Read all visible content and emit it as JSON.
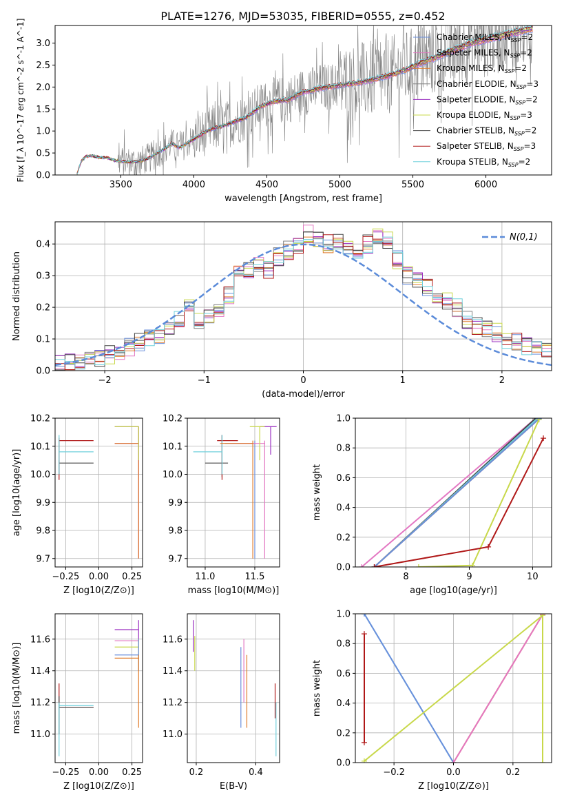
{
  "figure_title": "PLATE=1276, MJD=53035, FIBERID=0555, z=0.452",
  "colors": {
    "Chabrier MILES": "#6a8fdc",
    "Salpeter MILES": "#e377c2",
    "Kroupa MILES": "#e07b2a",
    "Chabrier ELODIE": "#7f7f7f",
    "Salpeter ELODIE": "#9a2fc0",
    "Kroupa ELODIE": "#c8d84a",
    "Chabrier STELIB": "#444444",
    "Salpeter STELIB": "#b01818",
    "Kroupa STELIB": "#6fd0dc",
    "gaussian": "#5b8bd9",
    "grid": "#b0b0b0"
  },
  "chart_data": [
    {
      "id": "spectrum",
      "type": "line",
      "xlabel": "wavelength [Angstrom, rest frame]",
      "ylabel": "Flux [f_λ 10^-17 erg cm^-2 s^-1 A^-1]",
      "xlim": [
        3050,
        6450
      ],
      "ylim": [
        0,
        3.4
      ],
      "xticks": [
        3500,
        4000,
        4500,
        5000,
        5500,
        6000
      ],
      "yticks": [
        0.0,
        0.5,
        1.0,
        1.5,
        2.0,
        2.5,
        3.0
      ],
      "grid": false,
      "legend_position": "top-right",
      "legend": [
        {
          "model": "Chabrier MILES",
          "label": "Chabrier MILES, N",
          "sub": "SSP",
          "tail": "=2"
        },
        {
          "model": "Salpeter MILES",
          "label": "Salpeter MILES, N",
          "sub": "SSP",
          "tail": "=2"
        },
        {
          "model": "Kroupa MILES",
          "label": "Kroupa MILES, N",
          "sub": "SSP",
          "tail": "=2"
        },
        {
          "model": "Chabrier ELODIE",
          "label": "Chabrier ELODIE, N",
          "sub": "SSP",
          "tail": "=3"
        },
        {
          "model": "Salpeter ELODIE",
          "label": "Salpeter ELODIE, N",
          "sub": "SSP",
          "tail": "=2"
        },
        {
          "model": "Kroupa ELODIE",
          "label": "Kroupa ELODIE, N",
          "sub": "SSP",
          "tail": "=3"
        },
        {
          "model": "Chabrier STELIB",
          "label": "Chabrier STELIB, N",
          "sub": "SSP",
          "tail": "=2"
        },
        {
          "model": "Salpeter STELIB",
          "label": "Salpeter STELIB, N",
          "sub": "SSP",
          "tail": "=3"
        },
        {
          "model": "Kroupa STELIB",
          "label": "Kroupa STELIB, N",
          "sub": "SSP",
          "tail": "=2"
        }
      ],
      "continuum": {
        "wavelength": [
          3200,
          3230,
          3260,
          3300,
          3350,
          3400,
          3450,
          3500,
          3550,
          3600,
          3650,
          3700,
          3750,
          3800,
          3850,
          3900,
          3950,
          4000,
          4050,
          4100,
          4150,
          4200,
          4250,
          4300,
          4350,
          4400,
          4450,
          4500,
          4550,
          4600,
          4650,
          4700,
          4750,
          4800,
          4850,
          4900,
          4950,
          5000,
          5050,
          5100,
          5150,
          5200,
          5250,
          5300,
          5350,
          5400,
          5450,
          5500,
          5550,
          5600,
          5650,
          5700,
          5750,
          5800,
          5850,
          5900,
          5950,
          6000,
          6050,
          6100,
          6150,
          6200,
          6250,
          6320
        ],
        "flux": [
          0.02,
          0.32,
          0.42,
          0.44,
          0.4,
          0.4,
          0.34,
          0.31,
          0.3,
          0.3,
          0.33,
          0.4,
          0.5,
          0.6,
          0.72,
          0.62,
          0.72,
          0.82,
          0.92,
          1.02,
          1.08,
          1.12,
          1.18,
          1.25,
          1.3,
          1.42,
          1.55,
          1.62,
          1.68,
          1.7,
          1.72,
          1.82,
          1.9,
          1.92,
          1.98,
          2.0,
          2.02,
          2.05,
          2.08,
          2.1,
          2.12,
          2.16,
          2.2,
          2.25,
          2.28,
          2.35,
          2.4,
          2.48,
          2.55,
          2.62,
          2.68,
          2.75,
          2.82,
          2.88,
          2.95,
          3.02,
          3.06,
          3.1,
          3.14,
          3.18,
          3.22,
          3.26,
          3.3,
          3.35
        ]
      }
    },
    {
      "id": "residuals",
      "type": "histogram",
      "xlabel": "(data-model)/error",
      "ylabel": "Normed distribution",
      "xlim": [
        -2.5,
        2.5
      ],
      "ylim": [
        0,
        0.47
      ],
      "xticks": [
        -2,
        -1,
        0,
        1,
        2
      ],
      "yticks": [
        0.0,
        0.1,
        0.2,
        0.3,
        0.4
      ],
      "grid": true,
      "legend_position": "top-right",
      "gaussian_label": "N(0,1)",
      "bin_edges": [
        -2.5,
        -2.4,
        -2.3,
        -2.2,
        -2.1,
        -2.0,
        -1.9,
        -1.8,
        -1.7,
        -1.6,
        -1.5,
        -1.4,
        -1.3,
        -1.2,
        -1.1,
        -1.0,
        -0.9,
        -0.8,
        -0.7,
        -0.6,
        -0.5,
        -0.4,
        -0.3,
        -0.2,
        -0.1,
        0.0,
        0.1,
        0.2,
        0.3,
        0.4,
        0.5,
        0.6,
        0.7,
        0.8,
        0.9,
        1.0,
        1.1,
        1.2,
        1.3,
        1.4,
        1.5,
        1.6,
        1.7,
        1.8,
        1.9,
        2.0,
        2.1,
        2.2,
        2.3,
        2.4,
        2.5
      ],
      "reference_density": [
        0.02,
        0.025,
        0.03,
        0.035,
        0.04,
        0.05,
        0.06,
        0.075,
        0.09,
        0.1,
        0.11,
        0.13,
        0.16,
        0.2,
        0.16,
        0.17,
        0.2,
        0.24,
        0.31,
        0.32,
        0.34,
        0.32,
        0.36,
        0.38,
        0.4,
        0.43,
        0.42,
        0.4,
        0.41,
        0.39,
        0.38,
        0.4,
        0.42,
        0.41,
        0.35,
        0.3,
        0.28,
        0.26,
        0.24,
        0.22,
        0.2,
        0.16,
        0.14,
        0.13,
        0.12,
        0.1,
        0.09,
        0.08,
        0.07,
        0.06
      ]
    },
    {
      "id": "age-vs-Z",
      "type": "errorbar",
      "xlabel": "Z [log10(Z/Z⊙)]",
      "ylabel": "age [log10(age/yr)]",
      "xlim": [
        -0.33,
        0.33
      ],
      "ylim": [
        9.67,
        10.2
      ],
      "xticks": [
        -0.25,
        0.0,
        0.25
      ],
      "yticks": [
        9.7,
        9.8,
        9.9,
        10.0,
        10.1,
        10.2
      ],
      "grid": true,
      "points": [
        {
          "model": "Chabrier STELIB",
          "x": -0.3,
          "xlo": -0.3,
          "xhi": -0.04,
          "y": 10.04,
          "ylo": 10.0,
          "yhi": 10.05
        },
        {
          "model": "Salpeter STELIB",
          "x": -0.3,
          "xlo": -0.3,
          "xhi": -0.04,
          "y": 10.12,
          "ylo": 9.98,
          "yhi": 10.13
        },
        {
          "model": "Kroupa STELIB",
          "x": -0.3,
          "xlo": -0.3,
          "xhi": -0.04,
          "y": 10.08,
          "ylo": 10.0,
          "yhi": 10.14
        },
        {
          "model": "Chabrier MILES",
          "x": 0.3,
          "xlo": 0.12,
          "xhi": 0.3,
          "y": 10.11,
          "ylo": 9.7,
          "yhi": 10.17
        },
        {
          "model": "Salpeter MILES",
          "x": 0.3,
          "xlo": 0.12,
          "xhi": 0.3,
          "y": 10.11,
          "ylo": 9.7,
          "yhi": 10.17
        },
        {
          "model": "Kroupa MILES",
          "x": 0.3,
          "xlo": 0.12,
          "xhi": 0.3,
          "y": 10.11,
          "ylo": 9.7,
          "yhi": 10.17
        },
        {
          "model": "Salpeter ELODIE",
          "x": 0.3,
          "xlo": 0.12,
          "xhi": 0.3,
          "y": 10.17,
          "ylo": 10.05,
          "yhi": 10.17
        },
        {
          "model": "Kroupa ELODIE",
          "x": 0.3,
          "xlo": 0.12,
          "xhi": 0.3,
          "y": 10.17,
          "ylo": 10.05,
          "yhi": 10.17
        }
      ]
    },
    {
      "id": "age-vs-mass",
      "type": "errorbar",
      "xlabel": "mass [log10(M/M⊙)]",
      "ylabel": "",
      "xlim": [
        10.82,
        11.75
      ],
      "ylim": [
        9.67,
        10.2
      ],
      "xticks": [
        11.0,
        11.5
      ],
      "yticks": [
        9.7,
        9.8,
        9.9,
        10.0,
        10.1,
        10.2
      ],
      "grid": true,
      "points": [
        {
          "model": "Chabrier STELIB",
          "x": 11.17,
          "xlo": 11.0,
          "xhi": 11.23,
          "y": 10.04,
          "ylo": 9.99,
          "yhi": 10.14
        },
        {
          "model": "Salpeter STELIB",
          "x": 11.17,
          "xlo": 11.12,
          "xhi": 11.33,
          "y": 10.12,
          "ylo": 9.98,
          "yhi": 10.14
        },
        {
          "model": "Kroupa STELIB",
          "x": 11.17,
          "xlo": 10.88,
          "xhi": 11.17,
          "y": 10.08,
          "ylo": 10.0,
          "yhi": 10.14
        },
        {
          "model": "Chabrier MILES",
          "x": 11.5,
          "xlo": 11.2,
          "xhi": 11.5,
          "y": 10.11,
          "ylo": 9.7,
          "yhi": 10.12
        },
        {
          "model": "Salpeter MILES",
          "x": 11.6,
          "xlo": 11.25,
          "xhi": 11.6,
          "y": 10.11,
          "ylo": 9.7,
          "yhi": 10.12
        },
        {
          "model": "Kroupa MILES",
          "x": 11.48,
          "xlo": 11.15,
          "xhi": 11.48,
          "y": 10.11,
          "ylo": 9.7,
          "yhi": 10.12
        },
        {
          "model": "Salpeter ELODIE",
          "x": 11.66,
          "xlo": 11.55,
          "xhi": 11.72,
          "y": 10.17,
          "ylo": 10.07,
          "yhi": 10.17
        },
        {
          "model": "Kroupa ELODIE",
          "x": 11.55,
          "xlo": 11.45,
          "xhi": 11.6,
          "y": 10.17,
          "ylo": 10.05,
          "yhi": 10.17
        }
      ]
    },
    {
      "id": "mass-weight-vs-age",
      "type": "line",
      "xlabel": "age [log10(age/yr)]",
      "ylabel": "mass weight",
      "xlim": [
        7.2,
        10.3
      ],
      "ylim": [
        0,
        1
      ],
      "xticks": [
        8,
        9,
        10
      ],
      "yticks": [
        0.0,
        0.2,
        0.4,
        0.6,
        0.8,
        1.0
      ],
      "grid": true,
      "series": [
        {
          "model": "Salpeter MILES",
          "x": [
            7.3,
            10.05
          ],
          "y": [
            0.0,
            1.0
          ]
        },
        {
          "model": "Chabrier STELIB",
          "x": [
            7.5,
            10.05
          ],
          "y": [
            0.0,
            1.0
          ]
        },
        {
          "model": "Kroupa STELIB",
          "x": [
            7.5,
            10.08
          ],
          "y": [
            0.0,
            1.0
          ]
        },
        {
          "model": "Kroupa MILES",
          "x": [
            7.5,
            10.1
          ],
          "y": [
            0.0,
            0.995
          ]
        },
        {
          "model": "Chabrier MILES",
          "x": [
            7.5,
            10.1
          ],
          "y": [
            0.0,
            0.995
          ]
        },
        {
          "model": "Kroupa ELODIE",
          "x": [
            8.2,
            9.05,
            10.1
          ],
          "y": [
            0.0,
            0.01,
            0.99
          ]
        },
        {
          "model": "Salpeter STELIB",
          "x": [
            7.5,
            9.3,
            10.17
          ],
          "y": [
            0.0,
            0.135,
            0.865
          ]
        }
      ]
    },
    {
      "id": "mass-vs-Z",
      "type": "errorbar",
      "xlabel": "Z [log10(Z/Z⊙)]",
      "ylabel": "mass [log10(M/M⊙)]",
      "xlim": [
        -0.33,
        0.33
      ],
      "ylim": [
        10.82,
        11.76
      ],
      "xticks": [
        -0.25,
        0.0,
        0.25
      ],
      "yticks": [
        11.0,
        11.2,
        11.4,
        11.6
      ],
      "grid": true,
      "points": [
        {
          "model": "Salpeter STELIB",
          "x": -0.3,
          "xlo": -0.3,
          "xhi": -0.04,
          "y": 11.17,
          "ylo": 11.0,
          "yhi": 11.32
        },
        {
          "model": "Chabrier STELIB",
          "x": -0.3,
          "xlo": -0.3,
          "xhi": -0.04,
          "y": 11.17,
          "ylo": 11.0,
          "yhi": 11.24
        },
        {
          "model": "Kroupa STELIB",
          "x": -0.3,
          "xlo": -0.3,
          "xhi": -0.04,
          "y": 11.18,
          "ylo": 10.86,
          "yhi": 11.2
        },
        {
          "model": "Salpeter ELODIE",
          "x": 0.3,
          "xlo": 0.12,
          "xhi": 0.3,
          "y": 11.66,
          "ylo": 11.55,
          "yhi": 11.72
        },
        {
          "model": "Salpeter MILES",
          "x": 0.3,
          "xlo": 0.12,
          "xhi": 0.3,
          "y": 11.59,
          "ylo": 11.4,
          "yhi": 11.6
        },
        {
          "model": "Kroupa ELODIE",
          "x": 0.3,
          "xlo": 0.12,
          "xhi": 0.3,
          "y": 11.55,
          "ylo": 11.4,
          "yhi": 11.6
        },
        {
          "model": "Chabrier MILES",
          "x": 0.3,
          "xlo": 0.12,
          "xhi": 0.3,
          "y": 11.5,
          "ylo": 11.4,
          "yhi": 11.6
        },
        {
          "model": "Kroupa MILES",
          "x": 0.3,
          "xlo": 0.12,
          "xhi": 0.3,
          "y": 11.48,
          "ylo": 11.04,
          "yhi": 11.5
        }
      ]
    },
    {
      "id": "mass-vs-ebv",
      "type": "errorbar",
      "xlabel": "E(B-V)",
      "ylabel": "",
      "xlim": [
        0.17,
        0.48
      ],
      "ylim": [
        10.82,
        11.76
      ],
      "xticks": [
        0.2,
        0.4
      ],
      "yticks": [
        11.0,
        11.2,
        11.4,
        11.6
      ],
      "grid": true,
      "points": [
        {
          "model": "Salpeter ELODIE",
          "x": 0.19,
          "y": 11.6,
          "ylo": 11.52,
          "yhi": 11.72
        },
        {
          "model": "Kroupa ELODIE",
          "x": 0.195,
          "y": 11.55,
          "ylo": 11.4,
          "yhi": 11.62
        },
        {
          "model": "Chabrier MILES",
          "x": 0.35,
          "y": 11.3,
          "ylo": 11.04,
          "yhi": 11.55
        },
        {
          "model": "Salpeter MILES",
          "x": 0.36,
          "y": 11.4,
          "ylo": 11.2,
          "yhi": 11.6
        },
        {
          "model": "Kroupa MILES",
          "x": 0.37,
          "y": 11.3,
          "ylo": 11.04,
          "yhi": 11.5
        },
        {
          "model": "Salpeter STELIB",
          "x": 0.465,
          "y": 11.2,
          "ylo": 11.1,
          "yhi": 11.32
        },
        {
          "model": "Kroupa STELIB",
          "x": 0.468,
          "y": 11.0,
          "ylo": 10.86,
          "yhi": 11.2
        }
      ]
    },
    {
      "id": "mass-weight-vs-Z",
      "type": "line",
      "xlabel": "Z [log10(Z/Z⊙)]",
      "ylabel": "mass weight",
      "xlim": [
        -0.33,
        0.33
      ],
      "ylim": [
        0,
        1
      ],
      "xticks": [
        -0.2,
        0.0,
        0.2
      ],
      "yticks": [
        0.0,
        0.2,
        0.4,
        0.6,
        0.8,
        1.0
      ],
      "grid": true,
      "series": [
        {
          "model": "Salpeter STELIB",
          "x": [
            -0.3,
            -0.3
          ],
          "y": [
            0.135,
            0.865
          ]
        },
        {
          "model": "Kroupa STELIB",
          "x": [
            -0.3,
            0.0
          ],
          "y": [
            1.0,
            0.0
          ]
        },
        {
          "model": "Chabrier MILES",
          "x": [
            -0.3,
            0.0
          ],
          "y": [
            1.0,
            0.0
          ]
        },
        {
          "model": "Kroupa MILES",
          "x": [
            0.0,
            0.3
          ],
          "y": [
            0.0,
            0.995
          ]
        },
        {
          "model": "Salpeter MILES",
          "x": [
            0.0,
            0.3
          ],
          "y": [
            0.0,
            0.995
          ]
        },
        {
          "model": "Kroupa ELODIE",
          "x": [
            -0.3,
            0.3,
            0.3
          ],
          "y": [
            0.01,
            0.99,
            0.0
          ]
        }
      ]
    }
  ]
}
